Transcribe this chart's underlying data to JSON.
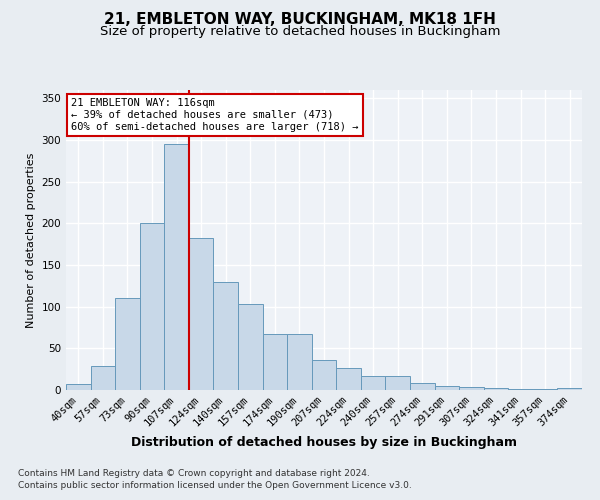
{
  "title1": "21, EMBLETON WAY, BUCKINGHAM, MK18 1FH",
  "title2": "Size of property relative to detached houses in Buckingham",
  "xlabel": "Distribution of detached houses by size in Buckingham",
  "ylabel": "Number of detached properties",
  "footer1": "Contains HM Land Registry data © Crown copyright and database right 2024.",
  "footer2": "Contains public sector information licensed under the Open Government Licence v3.0.",
  "categories": [
    "40sqm",
    "57sqm",
    "73sqm",
    "90sqm",
    "107sqm",
    "124sqm",
    "140sqm",
    "157sqm",
    "174sqm",
    "190sqm",
    "207sqm",
    "224sqm",
    "240sqm",
    "257sqm",
    "274sqm",
    "291sqm",
    "307sqm",
    "324sqm",
    "341sqm",
    "357sqm",
    "374sqm"
  ],
  "values": [
    7,
    29,
    110,
    200,
    295,
    182,
    130,
    103,
    67,
    67,
    36,
    26,
    17,
    17,
    9,
    5,
    4,
    3,
    1,
    1,
    2
  ],
  "bar_color": "#c8d8e8",
  "bar_edge_color": "#6699bb",
  "vline_x": 4.5,
  "vline_color": "#cc0000",
  "annotation_text": "21 EMBLETON WAY: 116sqm\n← 39% of detached houses are smaller (473)\n60% of semi-detached houses are larger (718) →",
  "annotation_box_color": "#ffffff",
  "annotation_box_edge": "#cc0000",
  "ylim": [
    0,
    360
  ],
  "yticks": [
    0,
    50,
    100,
    150,
    200,
    250,
    300,
    350
  ],
  "background_color": "#e8edf2",
  "plot_background": "#eef2f7",
  "grid_color": "#ffffff",
  "title1_fontsize": 11,
  "title2_fontsize": 9.5,
  "xlabel_fontsize": 9,
  "ylabel_fontsize": 8,
  "tick_fontsize": 7.5,
  "footer_fontsize": 6.5,
  "ann_fontsize": 7.5
}
